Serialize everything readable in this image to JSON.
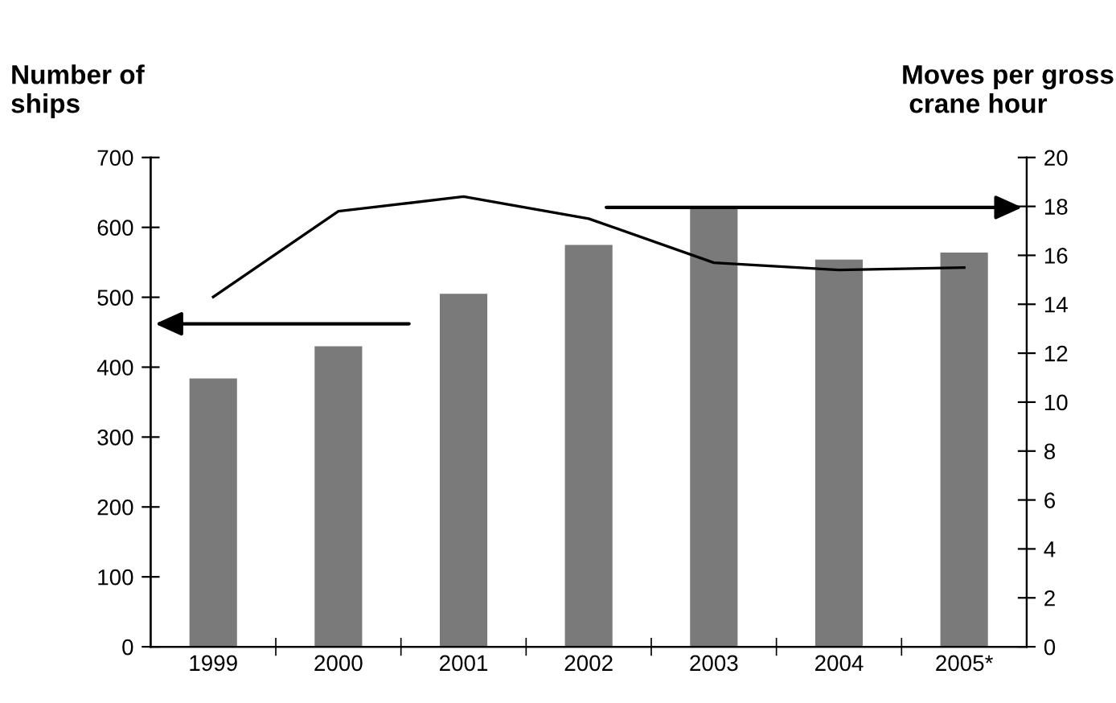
{
  "chart_data": {
    "type": "bar",
    "categories": [
      "1999",
      "2000",
      "2001",
      "2002",
      "2003",
      "2004",
      "2005*"
    ],
    "ylabel": "Number of\nships",
    "y2label": "Moves per gross\n crane hour",
    "series": [
      {
        "color": "#7a7a7a",
        "values": [
          384,
          430,
          505,
          575,
          629,
          554,
          564
        ]
      },
      {
        "type": "line",
        "axis": "y2",
        "color": "#000000",
        "values": [
          14.3,
          17.8,
          18.4,
          17.5,
          15.7,
          15.4,
          15.5
        ]
      }
    ],
    "ylim": [
      0,
      700
    ],
    "yticks": [
      0,
      100,
      200,
      300,
      400,
      500,
      600,
      700
    ],
    "y2lim": [
      0,
      20
    ],
    "y2ticks": [
      0,
      2,
      4,
      6,
      8,
      10,
      12,
      14,
      16,
      18,
      20
    ],
    "grid": false,
    "legend": false,
    "marker": "none",
    "line_style": "solid"
  }
}
